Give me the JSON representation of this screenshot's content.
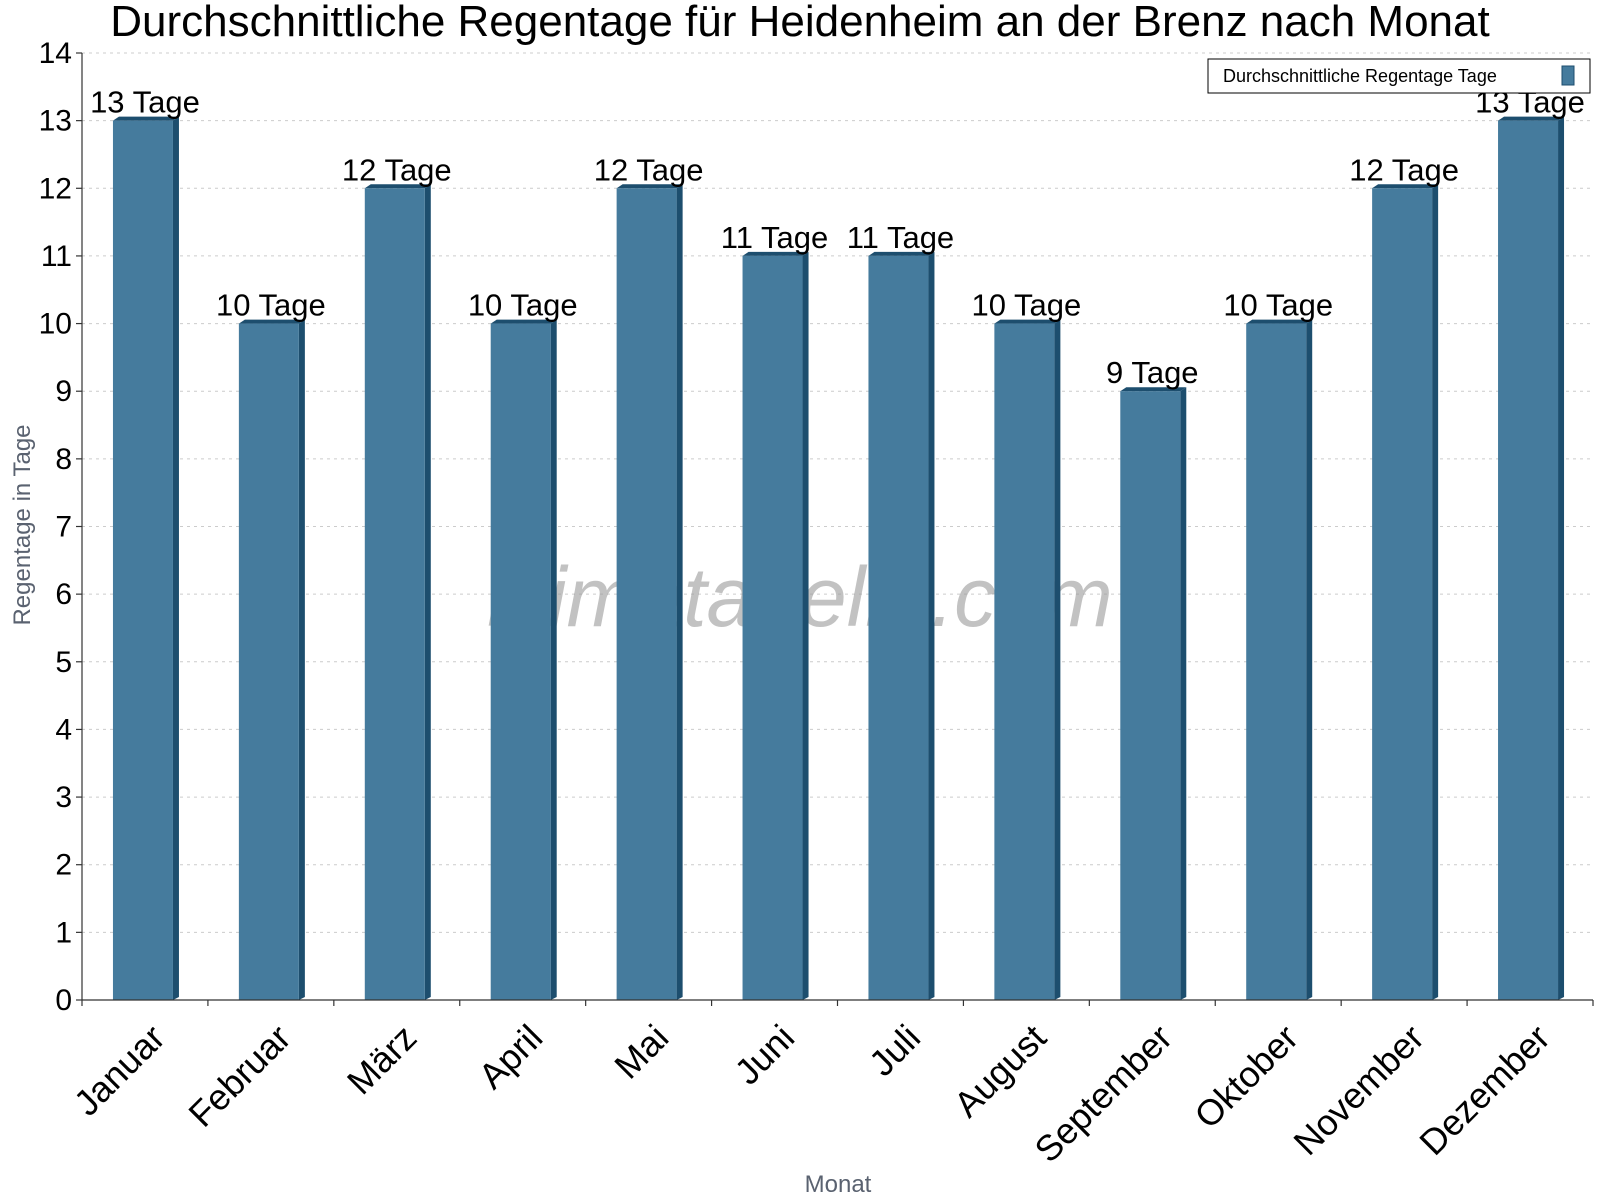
{
  "chart_data": {
    "type": "bar",
    "title": "Durchschnittliche Regentage für Heidenheim an der Brenz nach Monat",
    "xlabel": "Monat",
    "ylabel": "Regentage in Tage",
    "ylim": [
      0,
      14
    ],
    "yticks": [
      0,
      1,
      2,
      3,
      4,
      5,
      6,
      7,
      8,
      9,
      10,
      11,
      12,
      13,
      14
    ],
    "categories": [
      "Januar",
      "Februar",
      "März",
      "April",
      "Mai",
      "Juni",
      "Juli",
      "August",
      "September",
      "Oktober",
      "November",
      "Dezember"
    ],
    "series": [
      {
        "name": "Durchschnittliche Regentage Tage",
        "values": [
          13,
          10,
          12,
          10,
          12,
          11,
          11,
          10,
          9,
          10,
          12,
          13
        ],
        "labels": [
          "13 Tage",
          "10 Tage",
          "12 Tage",
          "10 Tage",
          "12 Tage",
          "11 Tage",
          "11 Tage",
          "10 Tage",
          "9 Tage",
          "10 Tage",
          "12 Tage",
          "13 Tage"
        ],
        "color": "#457b9d",
        "side_color": "#1d4e6e"
      }
    ],
    "grid": true,
    "legend_position": "top-right",
    "watermark": "klimatabelle.com"
  }
}
